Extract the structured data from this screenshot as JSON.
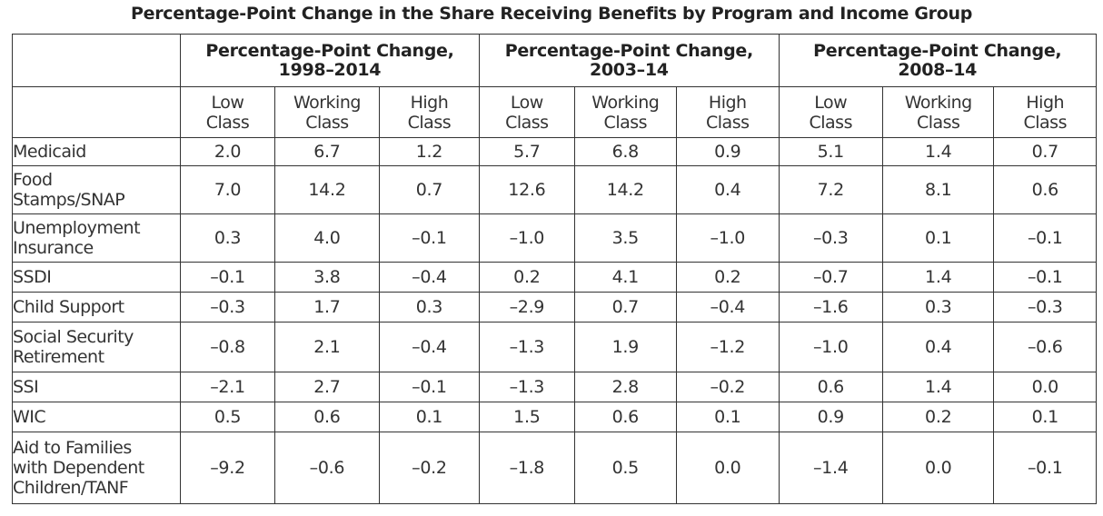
{
  "title": "Percentage-Point Change in the Share Receiving Benefits by Program and Income Group",
  "group_headers": [
    {
      "line1": "Percentage-Point Change,",
      "line2": "1998–2014"
    },
    {
      "line1": "Percentage-Point Change,",
      "line2": "2003–14"
    },
    {
      "line1": "Percentage-Point Change,",
      "line2": "2008–14"
    }
  ],
  "sub_headers": [
    {
      "line1": "Low",
      "line2": "Class"
    },
    {
      "line1": "Working",
      "line2": "Class"
    },
    {
      "line1": "High",
      "line2": "Class"
    },
    {
      "line1": "Low",
      "line2": "Class"
    },
    {
      "line1": "Working",
      "line2": "Class"
    },
    {
      "line1": "High",
      "line2": "Class"
    },
    {
      "line1": "Low",
      "line2": "Class"
    },
    {
      "line1": "Working",
      "line2": "Class"
    },
    {
      "line1": "High",
      "line2": "Class"
    }
  ],
  "rows": [
    {
      "label": [
        "Medicaid"
      ],
      "values": [
        "2.0",
        "6.7",
        "1.2",
        "5.7",
        "6.8",
        "0.9",
        "5.1",
        "1.4",
        "0.7"
      ]
    },
    {
      "label": [
        "Food",
        "Stamps/SNAP"
      ],
      "values": [
        "7.0",
        "14.2",
        "0.7",
        "12.6",
        "14.2",
        "0.4",
        "7.2",
        "8.1",
        "0.6"
      ]
    },
    {
      "label": [
        "Unemployment",
        "Insurance"
      ],
      "values": [
        "0.3",
        "4.0",
        "–0.1",
        "–1.0",
        "3.5",
        "–1.0",
        "–0.3",
        "0.1",
        "–0.1"
      ]
    },
    {
      "label": [
        "SSDI"
      ],
      "values": [
        "–0.1",
        "3.8",
        "–0.4",
        "0.2",
        "4.1",
        "0.2",
        "–0.7",
        "1.4",
        "–0.1"
      ]
    },
    {
      "label": [
        "Child Support"
      ],
      "values": [
        "–0.3",
        "1.7",
        "0.3",
        "–2.9",
        "0.7",
        "–0.4",
        "–1.6",
        "0.3",
        "–0.3"
      ]
    },
    {
      "label": [
        "Social Security",
        "Retirement"
      ],
      "values": [
        "–0.8",
        "2.1",
        "–0.4",
        "–1.3",
        "1.9",
        "–1.2",
        "–1.0",
        "0.4",
        "–0.6"
      ]
    },
    {
      "label": [
        "SSI"
      ],
      "values": [
        "–2.1",
        "2.7",
        "–0.1",
        "–1.3",
        "2.8",
        "–0.2",
        "0.6",
        "1.4",
        "0.0"
      ]
    },
    {
      "label": [
        "WIC"
      ],
      "values": [
        "0.5",
        "0.6",
        "0.1",
        "1.5",
        "0.6",
        "0.1",
        "0.9",
        "0.2",
        "0.1"
      ]
    },
    {
      "label": [
        "Aid to Families",
        "with Dependent",
        "Children/TANF"
      ],
      "values": [
        "–9.2",
        "–0.6",
        "–0.2",
        "–1.8",
        "0.5",
        "0.0",
        "–1.4",
        "0.0",
        "–0.1"
      ]
    }
  ]
}
